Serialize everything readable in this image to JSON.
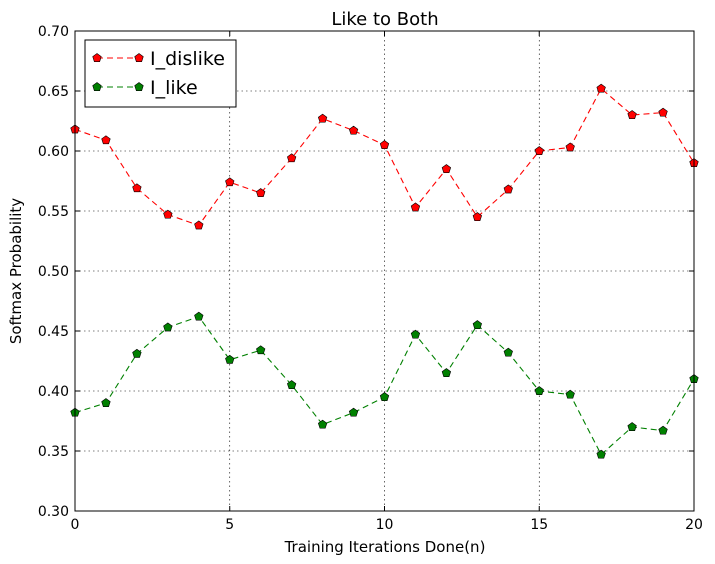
{
  "chart_data": {
    "type": "line",
    "title": "Like to Both",
    "xlabel": "Training Iterations Done(n)",
    "ylabel": "Softmax Probability",
    "xlim": [
      0,
      20
    ],
    "ylim": [
      0.3,
      0.7
    ],
    "xticks": [
      0,
      5,
      10,
      15,
      20
    ],
    "xtick_labels": [
      "0",
      "5",
      "10",
      "15",
      "20"
    ],
    "yticks": [
      0.3,
      0.35,
      0.4,
      0.45,
      0.5,
      0.55,
      0.6,
      0.65,
      0.7
    ],
    "ytick_labels": [
      "0.30",
      "0.35",
      "0.40",
      "0.45",
      "0.50",
      "0.55",
      "0.60",
      "0.65",
      "0.70"
    ],
    "grid": true,
    "legend_position": "top-left",
    "x": [
      0,
      1,
      2,
      3,
      4,
      5,
      6,
      7,
      8,
      9,
      10,
      11,
      12,
      13,
      14,
      15,
      16,
      17,
      18,
      19,
      20
    ],
    "series": [
      {
        "name": "I_dislike",
        "color": "#ff0000",
        "marker": "pentagon",
        "line_style": "dashed",
        "values": [
          0.618,
          0.609,
          0.569,
          0.547,
          0.538,
          0.574,
          0.565,
          0.594,
          0.627,
          0.617,
          0.605,
          0.553,
          0.585,
          0.545,
          0.568,
          0.6,
          0.603,
          0.652,
          0.63,
          0.632,
          0.59
        ]
      },
      {
        "name": "I_like",
        "color": "#008000",
        "marker": "pentagon",
        "line_style": "dashed",
        "values": [
          0.382,
          0.39,
          0.431,
          0.453,
          0.462,
          0.426,
          0.434,
          0.405,
          0.372,
          0.382,
          0.395,
          0.447,
          0.415,
          0.455,
          0.432,
          0.4,
          0.397,
          0.347,
          0.37,
          0.367,
          0.41
        ]
      }
    ]
  }
}
